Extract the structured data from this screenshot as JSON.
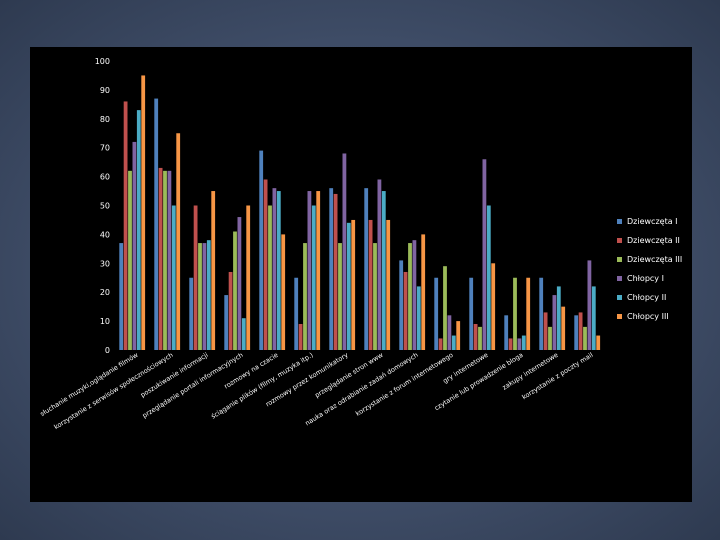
{
  "chart_data": {
    "type": "bar",
    "title": "",
    "xlabel": "",
    "ylabel": "",
    "ylim": [
      0,
      100
    ],
    "yticks": [
      "0",
      "10",
      "20",
      "30",
      "40",
      "50",
      "60",
      "70",
      "80",
      "90",
      "100"
    ],
    "grid": false,
    "legend_position": "right",
    "categories": [
      "słuchanie muzyki,oglądanie filmów",
      "korzystanie z serwisów społecznościowych",
      "poszukiwanie informacji",
      "przeglądanie portali informacyjnych",
      "rozmowy na czacie",
      "ściąganie plików (filmy, muzyka itp.)",
      "rozmowy przez komunikatory",
      "przeglądanie stron www",
      "nauka oraz odrabianie zadań domowych",
      "korzystanie z forum internetowego",
      "gry internetowe",
      "czytanie lub prowadzenie bloga",
      "zakupy internetowe",
      "korzystanie z poczty mail"
    ],
    "series": [
      {
        "name": "Dziewczęta I",
        "color": "#4f81bd",
        "values": [
          37,
          87,
          25,
          19,
          69,
          25,
          56,
          56,
          31,
          25,
          25,
          12,
          25,
          12
        ]
      },
      {
        "name": "Dziewczęta II",
        "color": "#c0504d",
        "values": [
          86,
          63,
          50,
          27,
          59,
          9,
          54,
          45,
          27,
          4,
          9,
          4,
          13,
          13
        ]
      },
      {
        "name": "Dziewczęta III",
        "color": "#9bbb59",
        "values": [
          62,
          62,
          37,
          41,
          50,
          37,
          37,
          37,
          37,
          29,
          8,
          25,
          8,
          8
        ]
      },
      {
        "name": "Chłopcy I",
        "color": "#8064a2",
        "values": [
          72,
          62,
          37,
          46,
          56,
          55,
          68,
          59,
          38,
          12,
          66,
          4,
          19,
          31
        ]
      },
      {
        "name": "Chłopcy II",
        "color": "#4bacc6",
        "values": [
          83,
          50,
          38,
          11,
          55,
          50,
          44,
          55,
          22,
          5,
          50,
          5,
          22,
          22
        ]
      },
      {
        "name": "Chłopcy III",
        "color": "#f79646",
        "values": [
          95,
          75,
          55,
          50,
          40,
          55,
          45,
          45,
          40,
          10,
          30,
          25,
          15,
          5
        ]
      }
    ]
  }
}
